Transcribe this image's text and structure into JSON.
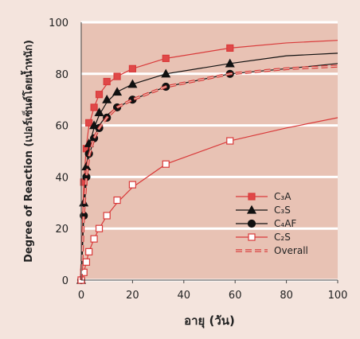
{
  "chart_data": {
    "type": "line",
    "xlabel": "อายุ (วัน)",
    "ylabel": "Degree of Reaction (เปอร์เซ็นต์โดยน้ำหนัก)",
    "xlim": [
      0,
      100
    ],
    "xticks": [
      0,
      20,
      40,
      60,
      80,
      100
    ],
    "ylim": [
      0,
      100
    ],
    "yticks": [
      0,
      20,
      40,
      60,
      80,
      100
    ],
    "grid": true,
    "legend": "lower right",
    "x": [
      0,
      1,
      2,
      3,
      5,
      7,
      10,
      14,
      20,
      33,
      58
    ],
    "fit_x": [
      0,
      1,
      2,
      3,
      5,
      7,
      10,
      14,
      20,
      33,
      58,
      80,
      100
    ],
    "series": [
      {
        "name": "C₃A",
        "color": "#d93a3a",
        "marker": "square",
        "marker_fill": "#e04848",
        "values": [
          0,
          38,
          51,
          61,
          67,
          72,
          77,
          79,
          82,
          86,
          90
        ],
        "fit_values": [
          0,
          38,
          52,
          60,
          67,
          72,
          76,
          79,
          82,
          86,
          90,
          92,
          93
        ]
      },
      {
        "name": "C₃S",
        "color": "#111111",
        "marker": "triangle",
        "marker_fill": "#111111",
        "values": [
          0,
          30,
          44,
          53,
          60,
          65,
          70,
          73,
          76,
          80,
          84
        ],
        "fit_values": [
          0,
          30,
          44,
          52,
          59,
          64,
          69,
          73,
          76,
          80,
          84,
          87,
          88
        ]
      },
      {
        "name": "C₄AF",
        "color": "#111111",
        "marker": "circle",
        "marker_fill": "#111111",
        "values": [
          0,
          25,
          40,
          49,
          55,
          59,
          63,
          67,
          70,
          75,
          80
        ],
        "fit_values": [
          0,
          25,
          39,
          48,
          55,
          60,
          64,
          67,
          70,
          75,
          80,
          82,
          84
        ]
      },
      {
        "name": "C₂S",
        "color": "#d93a3a",
        "marker": "square",
        "marker_fill": "#ffffff",
        "values": [
          0,
          3,
          7,
          11,
          16,
          20,
          25,
          31,
          37,
          45,
          54
        ],
        "fit_values": [
          0,
          3,
          7,
          11,
          16,
          20,
          25,
          30,
          36,
          45,
          54,
          59,
          63
        ]
      },
      {
        "name": "Overall",
        "color": "#d93a3a",
        "dashed": true,
        "fit_values": [
          0,
          27,
          40,
          48,
          55,
          59,
          63,
          67,
          70,
          75,
          80,
          82,
          83
        ]
      }
    ]
  }
}
